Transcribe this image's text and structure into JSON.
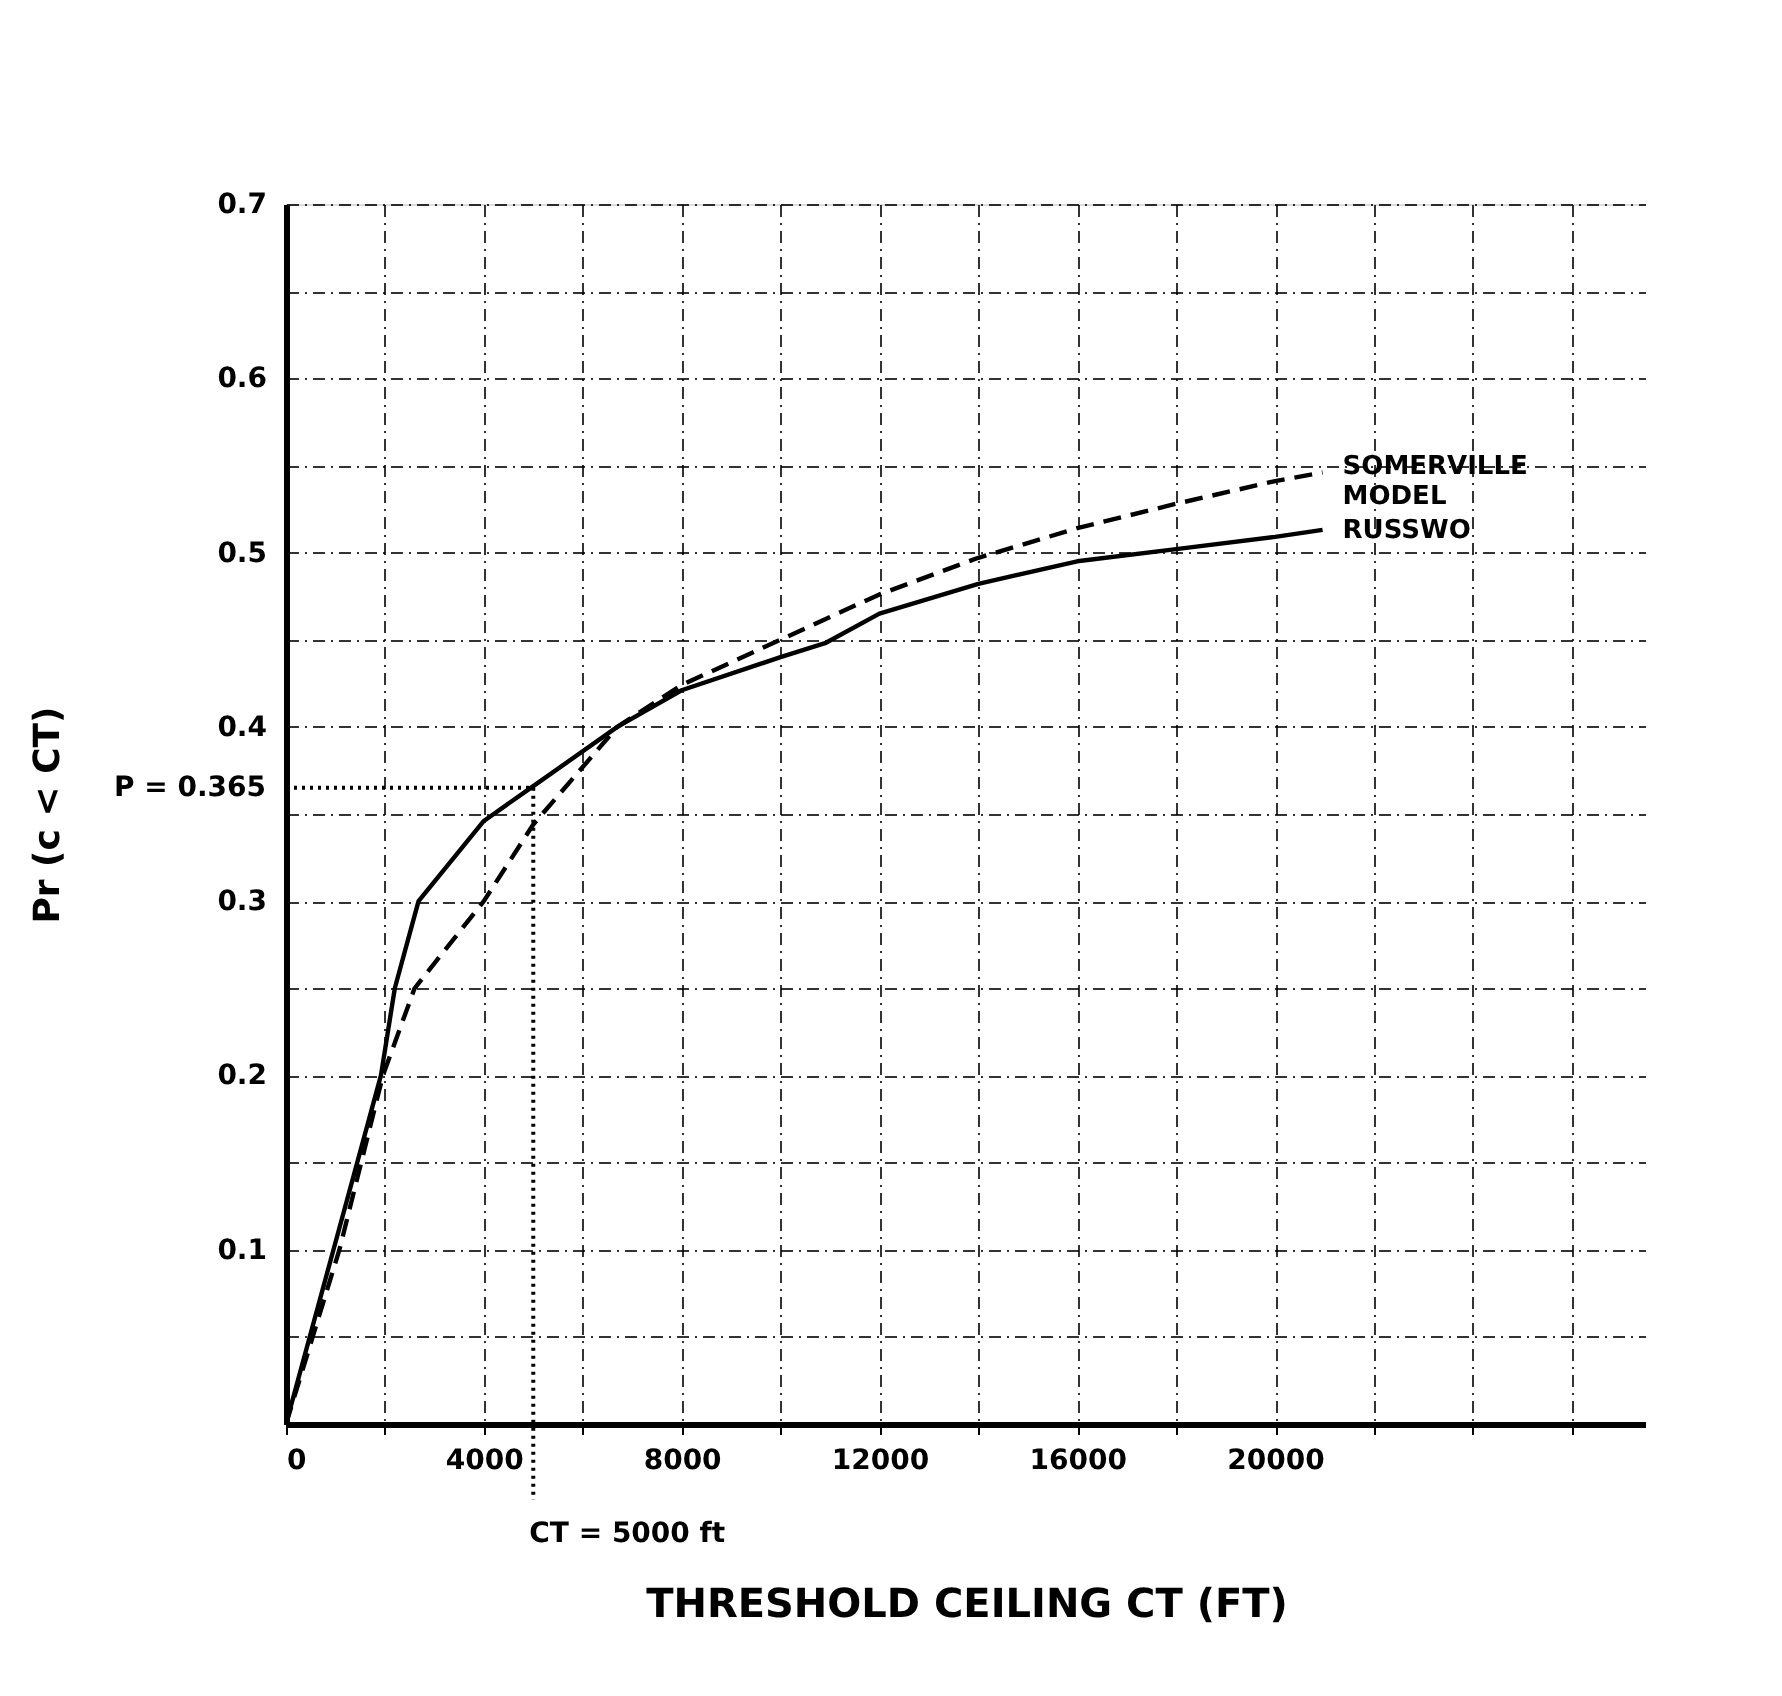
{
  "chart_data": {
    "type": "line",
    "xlabel": "THRESHOLD CEILING CT (FT)",
    "ylabel": "Pr (c < CT)",
    "xlim": [
      0,
      27500
    ],
    "ylim": [
      0,
      0.7
    ],
    "xticks": [
      0,
      {
        "value": 2000,
        "label": null
      },
      4000,
      {
        "value": 6000,
        "label": null
      },
      8000,
      {
        "value": 10000,
        "label": null
      },
      12000,
      {
        "value": 14000,
        "label": null
      },
      16000,
      {
        "value": 18000,
        "label": null
      },
      20000,
      {
        "value": 22000,
        "label": null
      },
      {
        "value": 24000,
        "label": null
      },
      {
        "value": 26000,
        "label": null
      }
    ],
    "yticks": [
      {
        "value": 0,
        "label": null
      },
      {
        "value": 0.05,
        "label": null
      },
      0.1,
      {
        "value": 0.15,
        "label": null
      },
      0.2,
      {
        "value": 0.25,
        "label": null
      },
      0.3,
      {
        "value": 0.35,
        "label": null
      },
      0.4,
      {
        "value": 0.45,
        "label": null
      },
      0.5,
      {
        "value": 0.55,
        "label": null
      },
      0.6,
      {
        "value": 0.65,
        "label": null
      },
      0.7
    ],
    "grid": true,
    "legend": false,
    "marker": "none",
    "series": [
      {
        "name": "SOMERVILLE MODEL",
        "color": "#000000",
        "line_style": "dashed",
        "x": [
          0,
          1080,
          1960,
          2600,
          4000,
          5000,
          6700,
          8000,
          10000,
          12000,
          14000,
          16000,
          18000,
          20000,
          20960
        ],
        "values": [
          0,
          0.1,
          0.2,
          0.25,
          0.3,
          0.344,
          0.4,
          0.424,
          0.45,
          0.476,
          0.497,
          0.514,
          0.528,
          0.541,
          0.546
        ]
      },
      {
        "name": "RUSSWO",
        "color": "#000000",
        "line_style": "solid",
        "x": [
          0,
          960,
          1920,
          2200,
          2680,
          4000,
          5000,
          6700,
          8000,
          10000,
          10900,
          12000,
          14000,
          16000,
          18000,
          20000,
          20960
        ],
        "values": [
          0,
          0.1,
          0.2,
          0.25,
          0.3,
          0.346,
          0.366,
          0.4,
          0.421,
          0.44,
          0.448,
          0.465,
          0.482,
          0.495,
          0.502,
          0.509,
          0.513
        ]
      }
    ],
    "ref_lines": [
      {
        "axis": "y",
        "value": 0.365,
        "label": "P = 0.365",
        "line_style": "dotted",
        "color": "#000000"
      },
      {
        "axis": "x",
        "value": 5000,
        "label": "CT = 5000 ft",
        "line_style": "dotted",
        "color": "#000000"
      }
    ]
  }
}
